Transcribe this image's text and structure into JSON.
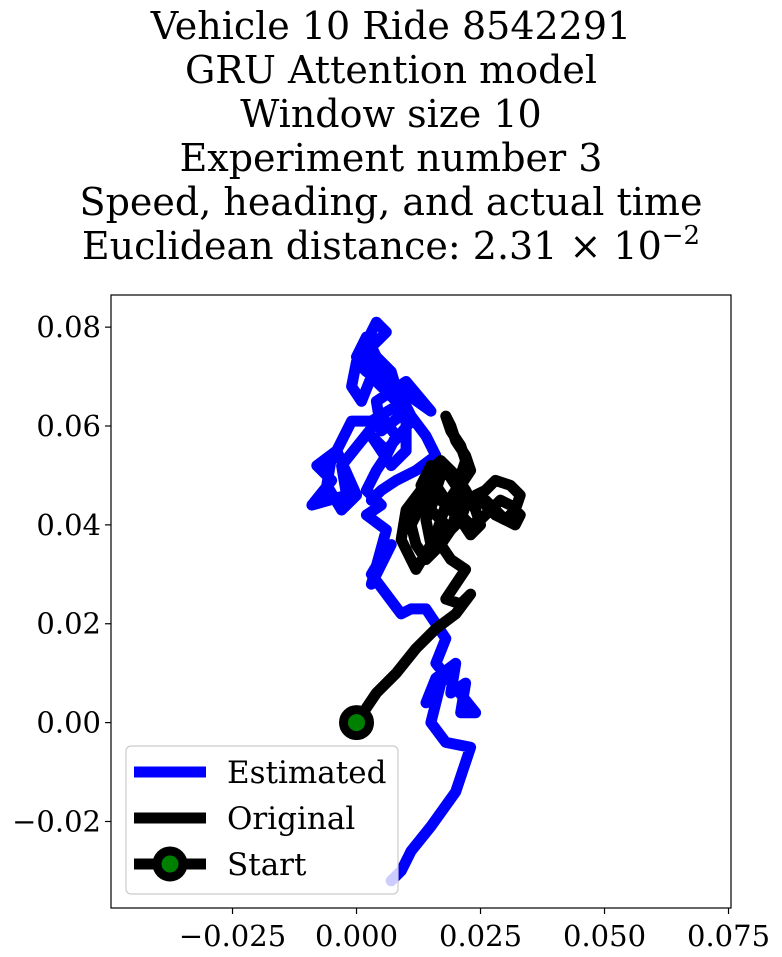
{
  "chart_data": {
    "type": "line",
    "title_lines": [
      "Vehicle 10 Ride 8542291",
      "GRU Attention model",
      "Window size 10",
      "Experiment number 3",
      "Speed, heading, and actual time"
    ],
    "title_distance": {
      "prefix": "Euclidean distance: ",
      "mantissa": "2.31",
      "times": "×",
      "base": "10",
      "exponent": "−2"
    },
    "xlabel": "",
    "ylabel": "",
    "xlim": [
      -0.0495,
      0.0755
    ],
    "ylim": [
      -0.0375,
      0.0865
    ],
    "xticks": [
      -0.025,
      0.0,
      0.025,
      0.05,
      0.075
    ],
    "xtick_labels": [
      "−0.025",
      "0.000",
      "0.025",
      "0.050",
      "0.075"
    ],
    "yticks": [
      -0.02,
      0.0,
      0.02,
      0.04,
      0.06,
      0.08
    ],
    "ytick_labels": [
      "−0.02",
      "0.00",
      "0.02",
      "0.04",
      "0.06",
      "0.08"
    ],
    "grid": false,
    "legend_placement": "lower-left",
    "legend": [
      {
        "label": "Estimated",
        "color": "#0000ff",
        "marker": false
      },
      {
        "label": "Original",
        "color": "#000000",
        "marker": false
      },
      {
        "label": "Start",
        "color": "#000000",
        "marker": true,
        "marker_face": "#008000"
      }
    ],
    "series": [
      {
        "name": "Estimated",
        "color": "#0000ff",
        "x": [
          0.007,
          0.009,
          0.011,
          0.015,
          0.02,
          0.023,
          0.018,
          0.015,
          0.017,
          0.014,
          0.016,
          0.02,
          0.019,
          0.022,
          0.021,
          0.024,
          0.016,
          0.018,
          0.014,
          0.011,
          0.009,
          0.003,
          0.006,
          0.004,
          0.007,
          0.003,
          0.006,
          0.002,
          0.005,
          0.002,
          0.004,
          0.006,
          0.008,
          0.005,
          -0.003,
          -0.002,
          -0.009,
          -0.005,
          -0.008,
          -0.004,
          0.0,
          -0.003,
          -0.006,
          -0.005,
          -0.004,
          -0.001,
          0.003,
          0.008,
          0.011,
          0.006,
          0.003,
          0.007,
          0.01,
          0.01,
          0.005,
          0.004,
          0.01,
          0.015,
          0.008,
          0.004,
          0.002,
          0.0,
          -0.001,
          0.001,
          0.003,
          0.0,
          0.002,
          0.003,
          0.006,
          0.009,
          0.007,
          0.004,
          0.003,
          0.006,
          0.004,
          0.002,
          0.001,
          0.003,
          0.006,
          0.009,
          0.011,
          0.014,
          0.016,
          0.012,
          0.008,
          0.005,
          0.003
        ],
        "y": [
          -0.032,
          -0.03,
          -0.026,
          -0.021,
          -0.014,
          -0.005,
          -0.004,
          0.0,
          0.008,
          0.004,
          0.009,
          0.012,
          0.006,
          0.008,
          0.002,
          0.002,
          0.012,
          0.017,
          0.023,
          0.023,
          0.022,
          0.03,
          0.035,
          0.03,
          0.036,
          0.028,
          0.039,
          0.042,
          0.044,
          0.047,
          0.051,
          0.054,
          0.058,
          0.062,
          0.052,
          0.046,
          0.044,
          0.049,
          0.052,
          0.055,
          0.046,
          0.043,
          0.048,
          0.054,
          0.055,
          0.061,
          0.061,
          0.064,
          0.061,
          0.055,
          0.058,
          0.052,
          0.055,
          0.063,
          0.059,
          0.065,
          0.069,
          0.063,
          0.068,
          0.072,
          0.071,
          0.073,
          0.068,
          0.065,
          0.07,
          0.074,
          0.078,
          0.07,
          0.067,
          0.064,
          0.071,
          0.074,
          0.076,
          0.079,
          0.081,
          0.077,
          0.075,
          0.072,
          0.069,
          0.066,
          0.062,
          0.058,
          0.054,
          0.051,
          0.049,
          0.047,
          0.045
        ]
      },
      {
        "name": "Original",
        "color": "#000000",
        "x": [
          0.0,
          0.004,
          0.008,
          0.012,
          0.016,
          0.02,
          0.023,
          0.021,
          0.018,
          0.02,
          0.022,
          0.019,
          0.017,
          0.019,
          0.021,
          0.018,
          0.016,
          0.014,
          0.015,
          0.012,
          0.009,
          0.01,
          0.013,
          0.016,
          0.018,
          0.02,
          0.021,
          0.02,
          0.018,
          0.016,
          0.014,
          0.012,
          0.011,
          0.013,
          0.016,
          0.017,
          0.015,
          0.013,
          0.014,
          0.017,
          0.019,
          0.02,
          0.018,
          0.016,
          0.015,
          0.017,
          0.02,
          0.022,
          0.024,
          0.025,
          0.023,
          0.021,
          0.022,
          0.024,
          0.026,
          0.028,
          0.031,
          0.033,
          0.032,
          0.03,
          0.028,
          0.026,
          0.024,
          0.026,
          0.028,
          0.03,
          0.032,
          0.033,
          0.031,
          0.029,
          0.027,
          0.025,
          0.023,
          0.021,
          0.02,
          0.021,
          0.023,
          0.022,
          0.02,
          0.019,
          0.018,
          0.019,
          0.021,
          0.022,
          0.021,
          0.02,
          0.018,
          0.017,
          0.016
        ],
        "y": [
          0.0,
          0.006,
          0.01,
          0.015,
          0.019,
          0.022,
          0.026,
          0.024,
          0.025,
          0.028,
          0.031,
          0.033,
          0.036,
          0.039,
          0.041,
          0.044,
          0.046,
          0.041,
          0.036,
          0.031,
          0.037,
          0.043,
          0.047,
          0.049,
          0.051,
          0.048,
          0.044,
          0.04,
          0.038,
          0.035,
          0.033,
          0.036,
          0.04,
          0.044,
          0.047,
          0.05,
          0.052,
          0.048,
          0.044,
          0.041,
          0.039,
          0.042,
          0.045,
          0.048,
          0.051,
          0.053,
          0.05,
          0.047,
          0.043,
          0.04,
          0.038,
          0.041,
          0.044,
          0.046,
          0.047,
          0.049,
          0.048,
          0.046,
          0.043,
          0.041,
          0.042,
          0.044,
          0.046,
          0.045,
          0.043,
          0.041,
          0.04,
          0.042,
          0.044,
          0.045,
          0.043,
          0.041,
          0.04,
          0.042,
          0.045,
          0.048,
          0.051,
          0.054,
          0.057,
          0.06,
          0.062,
          0.059,
          0.056,
          0.053,
          0.05,
          0.047,
          0.044,
          0.041,
          0.038
        ]
      }
    ],
    "start_point": {
      "x": 0.0,
      "y": 0.0,
      "marker_edge": "#000000",
      "marker_face": "#008000"
    }
  }
}
